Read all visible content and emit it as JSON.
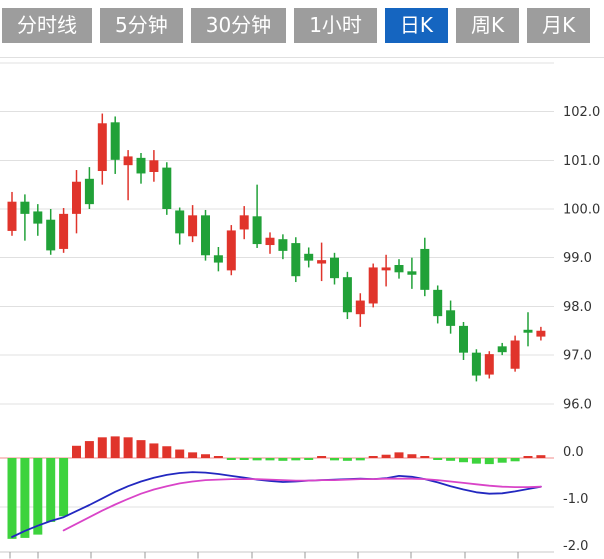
{
  "toolbar": {
    "tabs": [
      {
        "id": "tab-time-line",
        "label": "分时线",
        "active": false
      },
      {
        "id": "tab-5min",
        "label": "5分钟",
        "active": false
      },
      {
        "id": "tab-30min",
        "label": "30分钟",
        "active": false
      },
      {
        "id": "tab-1hour",
        "label": "1小时",
        "active": false
      },
      {
        "id": "tab-daily-k",
        "label": "日K",
        "active": true
      },
      {
        "id": "tab-weekly-k",
        "label": "周K",
        "active": false
      },
      {
        "id": "tab-monthly-k",
        "label": "月K",
        "active": false
      }
    ]
  },
  "chart_data": {
    "type": "candlestick",
    "title": "",
    "legend_position": "none",
    "grid": true,
    "main_panel": {
      "y_ticks": [
        {
          "price": 103.0,
          "label": ""
        },
        {
          "price": 102.0,
          "label": "102.0"
        },
        {
          "price": 101.0,
          "label": "101.0"
        },
        {
          "price": 100.0,
          "label": "100.0"
        },
        {
          "price": 99.0,
          "label": "99.0"
        },
        {
          "price": 98.0,
          "label": "98.0"
        },
        {
          "price": 97.0,
          "label": "97.0"
        },
        {
          "price": 96.0,
          "label": "96.0"
        }
      ],
      "ylim": [
        95.8,
        103.0
      ],
      "candles": [
        {
          "open": 99.55,
          "high": 100.35,
          "low": 99.45,
          "close": 100.15
        },
        {
          "open": 100.15,
          "high": 100.3,
          "low": 99.35,
          "close": 99.9
        },
        {
          "open": 99.95,
          "high": 100.1,
          "low": 99.45,
          "close": 99.7
        },
        {
          "open": 99.78,
          "high": 100.0,
          "low": 99.06,
          "close": 99.15
        },
        {
          "open": 99.18,
          "high": 100.02,
          "low": 99.1,
          "close": 99.9
        },
        {
          "open": 99.9,
          "high": 100.8,
          "low": 99.5,
          "close": 100.56
        },
        {
          "open": 100.62,
          "high": 100.86,
          "low": 100.0,
          "close": 100.1
        },
        {
          "open": 100.78,
          "high": 101.96,
          "low": 100.5,
          "close": 101.76
        },
        {
          "open": 101.78,
          "high": 101.9,
          "low": 100.72,
          "close": 101.01
        },
        {
          "open": 100.9,
          "high": 101.21,
          "low": 100.18,
          "close": 101.08
        },
        {
          "open": 101.05,
          "high": 101.15,
          "low": 100.52,
          "close": 100.73
        },
        {
          "open": 100.76,
          "high": 101.21,
          "low": 100.56,
          "close": 101.0
        },
        {
          "open": 100.85,
          "high": 100.96,
          "low": 99.88,
          "close": 100.0
        },
        {
          "open": 99.97,
          "high": 100.03,
          "low": 99.27,
          "close": 99.5
        },
        {
          "open": 99.44,
          "high": 100.08,
          "low": 99.32,
          "close": 99.87
        },
        {
          "open": 99.87,
          "high": 99.98,
          "low": 98.94,
          "close": 99.05
        },
        {
          "open": 99.05,
          "high": 99.22,
          "low": 98.72,
          "close": 98.9
        },
        {
          "open": 98.74,
          "high": 99.67,
          "low": 98.64,
          "close": 99.56
        },
        {
          "open": 99.58,
          "high": 100.06,
          "low": 99.38,
          "close": 99.87
        },
        {
          "open": 99.85,
          "high": 100.5,
          "low": 99.2,
          "close": 99.28
        },
        {
          "open": 99.26,
          "high": 99.52,
          "low": 99.08,
          "close": 99.41
        },
        {
          "open": 99.38,
          "high": 99.48,
          "low": 98.97,
          "close": 99.14
        },
        {
          "open": 99.3,
          "high": 99.42,
          "low": 98.5,
          "close": 98.62
        },
        {
          "open": 99.08,
          "high": 99.21,
          "low": 98.8,
          "close": 98.94
        },
        {
          "open": 98.88,
          "high": 99.31,
          "low": 98.52,
          "close": 98.95
        },
        {
          "open": 99.0,
          "high": 99.1,
          "low": 98.45,
          "close": 98.58
        },
        {
          "open": 98.6,
          "high": 98.71,
          "low": 97.74,
          "close": 97.88
        },
        {
          "open": 97.84,
          "high": 98.27,
          "low": 97.58,
          "close": 98.12
        },
        {
          "open": 98.06,
          "high": 98.88,
          "low": 97.98,
          "close": 98.8
        },
        {
          "open": 98.74,
          "high": 99.06,
          "low": 98.41,
          "close": 98.8
        },
        {
          "open": 98.85,
          "high": 98.97,
          "low": 98.57,
          "close": 98.7
        },
        {
          "open": 98.72,
          "high": 99.0,
          "low": 98.36,
          "close": 98.65
        },
        {
          "open": 99.18,
          "high": 99.41,
          "low": 98.21,
          "close": 98.34
        },
        {
          "open": 98.34,
          "high": 98.43,
          "low": 97.65,
          "close": 97.8
        },
        {
          "open": 97.92,
          "high": 98.12,
          "low": 97.44,
          "close": 97.6
        },
        {
          "open": 97.6,
          "high": 97.68,
          "low": 96.9,
          "close": 97.05
        },
        {
          "open": 97.05,
          "high": 97.12,
          "low": 96.46,
          "close": 96.58
        },
        {
          "open": 96.6,
          "high": 97.08,
          "low": 96.52,
          "close": 97.02
        },
        {
          "open": 97.18,
          "high": 97.25,
          "low": 97.0,
          "close": 97.06
        },
        {
          "open": 96.72,
          "high": 97.4,
          "low": 96.66,
          "close": 97.3
        },
        {
          "open": 97.52,
          "high": 97.88,
          "low": 97.18,
          "close": 97.46
        },
        {
          "open": 97.38,
          "high": 97.58,
          "low": 97.3,
          "close": 97.5
        }
      ]
    },
    "macd_panel": {
      "y_ticks": [
        {
          "value": 0.0,
          "label": "0.0"
        },
        {
          "value": -1.0,
          "label": "-1.0"
        },
        {
          "value": -2.0,
          "label": "-2.0"
        }
      ],
      "ylim": [
        -2.1,
        0.6
      ],
      "histogram": [
        -1.72,
        -1.7,
        -1.63,
        -1.36,
        -1.24,
        0.26,
        0.36,
        0.44,
        0.46,
        0.44,
        0.38,
        0.31,
        0.25,
        0.18,
        0.12,
        0.08,
        0.04,
        -0.03,
        -0.04,
        -0.05,
        -0.05,
        -0.06,
        -0.05,
        -0.04,
        0.03,
        -0.05,
        -0.06,
        -0.05,
        0.04,
        0.07,
        0.12,
        0.08,
        0.04,
        -0.04,
        -0.06,
        -0.09,
        -0.12,
        -0.13,
        -0.1,
        -0.07,
        0.04,
        0.06
      ],
      "dif": [
        -1.68,
        -1.55,
        -1.44,
        -1.34,
        -1.26,
        -1.13,
        -1.0,
        -0.86,
        -0.72,
        -0.6,
        -0.5,
        -0.42,
        -0.36,
        -0.32,
        -0.3,
        -0.31,
        -0.34,
        -0.38,
        -0.42,
        -0.46,
        -0.49,
        -0.51,
        -0.5,
        -0.48,
        -0.47,
        -0.46,
        -0.45,
        -0.44,
        -0.45,
        -0.43,
        -0.38,
        -0.4,
        -0.45,
        -0.52,
        -0.6,
        -0.67,
        -0.73,
        -0.76,
        -0.75,
        -0.71,
        -0.66,
        -0.61
      ],
      "dea": [
        null,
        null,
        null,
        null,
        -1.54,
        -1.4,
        -1.26,
        -1.12,
        -0.99,
        -0.87,
        -0.76,
        -0.67,
        -0.6,
        -0.54,
        -0.5,
        -0.47,
        -0.46,
        -0.45,
        -0.45,
        -0.45,
        -0.46,
        -0.47,
        -0.48,
        -0.48,
        -0.47,
        -0.47,
        -0.46,
        -0.45,
        -0.45,
        -0.44,
        -0.44,
        -0.44,
        -0.45,
        -0.47,
        -0.5,
        -0.53,
        -0.56,
        -0.59,
        -0.61,
        -0.62,
        -0.62,
        -0.61
      ]
    },
    "x_axis": {
      "tick_positions": [
        10,
        38,
        91,
        145,
        198,
        252,
        305,
        358,
        411,
        465,
        518
      ]
    },
    "colors": {
      "up": "#e0342b",
      "down": "#21a138",
      "hist_up": "#e0342b",
      "hist_down": "#3dd33d",
      "dif_line": "#2228c0",
      "dea_line": "#d944c8",
      "zero_line": "#f28b8b",
      "grid": "#e0e0e0",
      "axis": "#c9c9c9",
      "tick": "#9a9a9a",
      "label": "#333333",
      "tab_active_bg": "#1565c0",
      "tab_bg": "#9d9d9d",
      "tab_text": "#ffffff",
      "background": "#ffffff"
    }
  }
}
